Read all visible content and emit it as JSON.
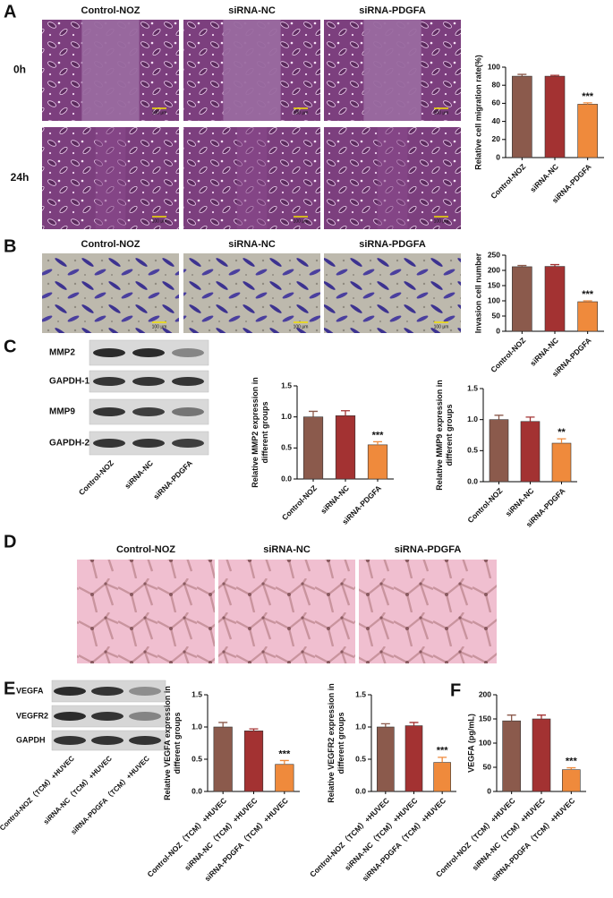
{
  "figure": {
    "panel_labels": [
      "A",
      "B",
      "C",
      "D",
      "E",
      "F"
    ],
    "groups": [
      "Control-NOZ",
      "siRNA-NC",
      "siRNA-PDGFA"
    ],
    "times": [
      "0h",
      "24h"
    ],
    "scale_bar": "100 μm",
    "blot_C_rows": [
      "MMP2",
      "GAPDH-1",
      "MMP9",
      "GAPDH-2"
    ],
    "blot_E_rows": [
      "VEGFA",
      "VEGFR2",
      "GAPDH"
    ],
    "groups_E": [
      "Control-NOZ（TCM）+HUVEC",
      "siRNA-NC（TCM）+HUVEC",
      "siRNA-PDGFA（TCM）+HUVEC"
    ]
  },
  "chart_data": [
    {
      "type": "bar",
      "ylabel": [
        "Relative cell migration rate(%)"
      ],
      "categories": [
        "Control-NOZ",
        "siRNA-NC",
        "siRNA-PDGFA"
      ],
      "values": [
        90,
        90,
        59
      ],
      "errors": [
        2,
        1,
        1.5
      ],
      "colors": [
        "#8b5a4c",
        "#a33232",
        "#ef8a3c"
      ],
      "ylim": [
        0,
        100
      ],
      "yticks": [
        0,
        20,
        40,
        60,
        80,
        100
      ],
      "annotation": {
        "category": "siRNA-PDGFA",
        "text": "***"
      }
    },
    {
      "type": "bar",
      "ylabel": [
        "Invasion cell number"
      ],
      "categories": [
        "Control-NOZ",
        "siRNA-NC",
        "siRNA-PDGFA"
      ],
      "values": [
        212,
        213,
        97
      ],
      "errors": [
        4,
        6,
        3
      ],
      "colors": [
        "#8b5a4c",
        "#a33232",
        "#ef8a3c"
      ],
      "ylim": [
        0,
        250
      ],
      "yticks": [
        0,
        50,
        100,
        150,
        200,
        250
      ],
      "annotation": {
        "category": "siRNA-PDGFA",
        "text": "***"
      }
    },
    {
      "type": "bar",
      "ylabel": [
        "Relative MMP2 expression in",
        "different groups"
      ],
      "categories": [
        "Control-NOZ",
        "siRNA-NC",
        "siRNA-PDGFA"
      ],
      "values": [
        1.0,
        1.02,
        0.55
      ],
      "errors": [
        0.09,
        0.08,
        0.05
      ],
      "colors": [
        "#8b5a4c",
        "#a33232",
        "#ef8a3c"
      ],
      "ylim": [
        0,
        1.5
      ],
      "yticks": [
        {
          "value": 0,
          "label": "0.0"
        },
        0.5,
        {
          "value": 1,
          "label": "1.0"
        },
        1.5
      ],
      "annotation": {
        "category": "siRNA-PDGFA",
        "text": "***"
      }
    },
    {
      "type": "bar",
      "ylabel": [
        "Relative MMP9 expression in",
        "different groups"
      ],
      "categories": [
        "Control-NOZ",
        "siRNA-NC",
        "siRNA-PDGFA"
      ],
      "values": [
        1.0,
        0.97,
        0.62
      ],
      "errors": [
        0.07,
        0.07,
        0.07
      ],
      "colors": [
        "#8b5a4c",
        "#a33232",
        "#ef8a3c"
      ],
      "ylim": [
        0,
        1.5
      ],
      "yticks": [
        {
          "value": 0,
          "label": "0.0"
        },
        0.5,
        {
          "value": 1,
          "label": "1.0"
        },
        1.5
      ],
      "annotation": {
        "category": "siRNA-PDGFA",
        "text": "**"
      }
    },
    {
      "type": "bar",
      "ylabel": [
        "Relative VEGFA expression in",
        "different groups"
      ],
      "categories": [
        "Control-NOZ（TCM）+HUVEC",
        "siRNA-NC（TCM）+HUVEC",
        "siRNA-PDGFA（TCM）+HUVEC"
      ],
      "values": [
        1.0,
        0.94,
        0.42
      ],
      "errors": [
        0.07,
        0.03,
        0.06
      ],
      "colors": [
        "#8b5a4c",
        "#a33232",
        "#ef8a3c"
      ],
      "ylim": [
        0,
        1.5
      ],
      "yticks": [
        {
          "value": 0,
          "label": "0.0"
        },
        0.5,
        {
          "value": 1,
          "label": "1.0"
        },
        1.5
      ],
      "annotation": {
        "category": "siRNA-PDGFA（TCM）+HUVEC",
        "text": "***"
      }
    },
    {
      "type": "bar",
      "ylabel": [
        "Relative VEGFR2 expression in",
        "different groups"
      ],
      "categories": [
        "Control-NOZ（TCM）+HUVEC",
        "siRNA-NC（TCM）+HUVEC",
        "siRNA-PDGFA（TCM）+HUVEC"
      ],
      "values": [
        1.0,
        1.02,
        0.45
      ],
      "errors": [
        0.05,
        0.05,
        0.08
      ],
      "colors": [
        "#8b5a4c",
        "#a33232",
        "#ef8a3c"
      ],
      "ylim": [
        0,
        1.5
      ],
      "yticks": [
        {
          "value": 0,
          "label": "0.0"
        },
        0.5,
        {
          "value": 1,
          "label": "1.0"
        },
        1.5
      ],
      "annotation": {
        "category": "siRNA-PDGFA（TCM）+HUVEC",
        "text": "***"
      }
    },
    {
      "type": "bar",
      "ylabel": [
        "VEGFA (pg/mL)"
      ],
      "categories": [
        "Control-NOZ（TCM）+HUVEC",
        "siRNA-NC（TCM）+HUVEC",
        "siRNA-PDGFA（TCM）+HUVEC"
      ],
      "values": [
        146,
        150,
        45
      ],
      "errors": [
        12,
        8,
        4
      ],
      "colors": [
        "#8b5a4c",
        "#a33232",
        "#ef8a3c"
      ],
      "ylim": [
        0,
        200
      ],
      "yticks": [
        0,
        50,
        100,
        150,
        200
      ],
      "annotation": {
        "category": "siRNA-PDGFA（TCM）+HUVEC",
        "text": "***"
      }
    }
  ]
}
